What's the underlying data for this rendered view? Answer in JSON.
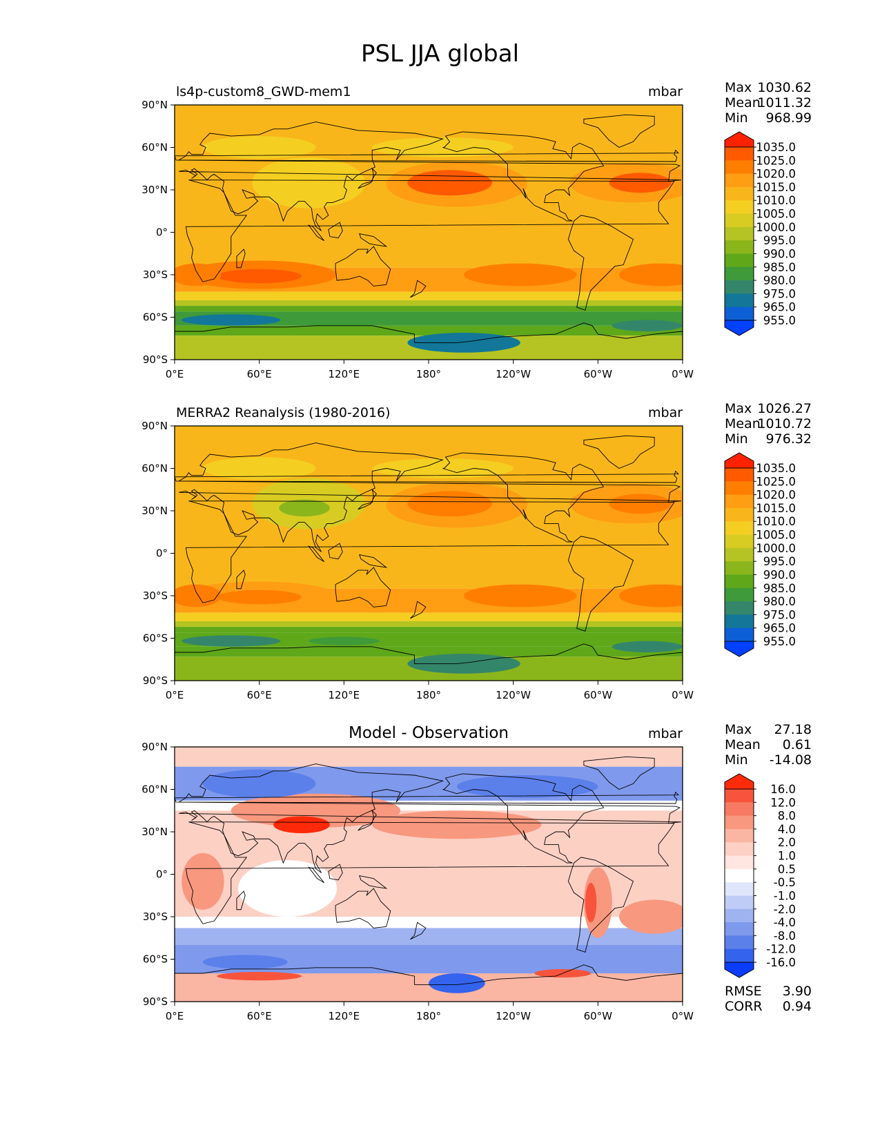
{
  "title": "PSL JJA global",
  "chart_data": [
    {
      "type": "heatmap",
      "title": "ls4p-custom8_GWD-mem1",
      "units": "mbar",
      "xlabel": "",
      "ylabel": "",
      "xlim": [
        0,
        360
      ],
      "ylim": [
        -90,
        90
      ],
      "x_ticks": [
        "0°E",
        "60°E",
        "120°E",
        "180°",
        "120°W",
        "60°W",
        "0°W"
      ],
      "y_ticks": [
        "90°N",
        "60°N",
        "30°N",
        "0°",
        "30°S",
        "60°S",
        "90°S"
      ],
      "stats": [
        {
          "label": "Max",
          "value": "1030.62"
        },
        {
          "label": "Mean",
          "value": "1011.32"
        },
        {
          "label": "Min",
          "value": "968.99"
        }
      ],
      "colorbar_levels": [
        "1035.0",
        "1025.0",
        "1020.0",
        "1015.0",
        "1010.0",
        "1005.0",
        "1000.0",
        "995.0",
        "990.0",
        "985.0",
        "980.0",
        "975.0",
        "965.0",
        "955.0"
      ],
      "colorbar_colors": [
        "#ff2200",
        "#ff5a00",
        "#ff7e00",
        "#ff9d13",
        "#f9b61a",
        "#f4cf22",
        "#d8cc22",
        "#b5c422",
        "#8bb61b",
        "#5ea81a",
        "#3f9a39",
        "#34866b",
        "#127798",
        "#0d5fd6",
        "#0040ff"
      ]
    },
    {
      "type": "heatmap",
      "title": "MERRA2 Reanalysis (1980-2016)",
      "units": "mbar",
      "xlabel": "",
      "ylabel": "",
      "xlim": [
        0,
        360
      ],
      "ylim": [
        -90,
        90
      ],
      "x_ticks": [
        "0°E",
        "60°E",
        "120°E",
        "180°",
        "120°W",
        "60°W",
        "0°W"
      ],
      "y_ticks": [
        "90°N",
        "60°N",
        "30°N",
        "0°",
        "30°S",
        "60°S",
        "90°S"
      ],
      "stats": [
        {
          "label": "Max",
          "value": "1026.27"
        },
        {
          "label": "Mean",
          "value": "1010.72"
        },
        {
          "label": "Min",
          "value": "976.32"
        }
      ],
      "colorbar_levels": [
        "1035.0",
        "1025.0",
        "1020.0",
        "1015.0",
        "1010.0",
        "1005.0",
        "1000.0",
        "995.0",
        "990.0",
        "985.0",
        "980.0",
        "975.0",
        "965.0",
        "955.0"
      ],
      "colorbar_colors": [
        "#ff2200",
        "#ff5a00",
        "#ff7e00",
        "#ff9d13",
        "#f9b61a",
        "#f4cf22",
        "#d8cc22",
        "#b5c422",
        "#8bb61b",
        "#5ea81a",
        "#3f9a39",
        "#34866b",
        "#127798",
        "#0d5fd6",
        "#0040ff"
      ]
    },
    {
      "type": "heatmap",
      "title": "Model - Observation",
      "units": "mbar",
      "xlabel": "",
      "ylabel": "",
      "xlim": [
        0,
        360
      ],
      "ylim": [
        -90,
        90
      ],
      "x_ticks": [
        "0°E",
        "60°E",
        "120°E",
        "180°",
        "120°W",
        "60°W",
        "0°W"
      ],
      "y_ticks": [
        "90°N",
        "60°N",
        "30°N",
        "0°",
        "30°S",
        "60°S",
        "90°S"
      ],
      "stats": [
        {
          "label": "Max",
          "value": "27.18"
        },
        {
          "label": "Mean",
          "value": "0.61"
        },
        {
          "label": "Min",
          "value": "-14.08"
        }
      ],
      "metrics": [
        {
          "label": "RMSE",
          "value": "3.90"
        },
        {
          "label": "CORR",
          "value": "0.94"
        }
      ],
      "colorbar_levels": [
        "16.0",
        "12.0",
        "8.0",
        "4.0",
        "2.0",
        "1.0",
        "0.5",
        "-0.5",
        "-1.0",
        "-2.0",
        "-4.0",
        "-8.0",
        "-12.0",
        "-16.0"
      ],
      "colorbar_colors": [
        "#ff2a0a",
        "#f8543c",
        "#f87a63",
        "#f8987f",
        "#fbb5a3",
        "#fdd0c4",
        "#ffe6e0",
        "#ffffff",
        "#dfe6fb",
        "#bfccf6",
        "#9fb3f1",
        "#7f99ec",
        "#5b80ea",
        "#3463ee",
        "#0a3cfb"
      ]
    }
  ]
}
